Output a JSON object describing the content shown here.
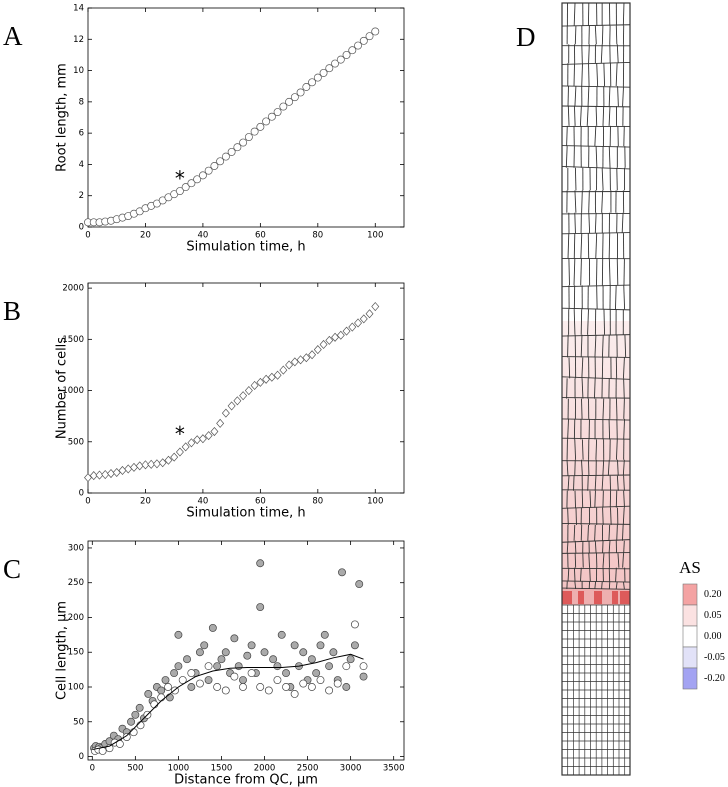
{
  "chart_data": [
    {
      "type": "scatter",
      "panel_label": "A",
      "xlabel": "Simulation time, h",
      "ylabel": "Root length, mm",
      "xlim": [
        0,
        110
      ],
      "ylim": [
        0,
        14
      ],
      "xticks": [
        0,
        20,
        40,
        60,
        80,
        100
      ],
      "yticks": [
        0,
        2,
        4,
        6,
        8,
        10,
        12,
        14
      ],
      "annotations": [
        {
          "text": "*",
          "x": 32,
          "y": 3.0
        }
      ],
      "x": [
        0,
        2,
        4,
        6,
        8,
        10,
        12,
        14,
        16,
        18,
        20,
        22,
        24,
        26,
        28,
        30,
        32,
        34,
        36,
        38,
        40,
        42,
        44,
        46,
        48,
        50,
        52,
        54,
        56,
        58,
        60,
        62,
        64,
        66,
        68,
        70,
        72,
        74,
        76,
        78,
        80,
        82,
        84,
        86,
        88,
        90,
        92,
        94,
        96,
        98,
        100
      ],
      "series": [
        {
          "marker": "o",
          "color": "#ffffff",
          "edgecolor": "#555555",
          "values": [
            0.3,
            0.3,
            0.3,
            0.35,
            0.4,
            0.5,
            0.6,
            0.7,
            0.85,
            1.0,
            1.2,
            1.35,
            1.5,
            1.7,
            1.9,
            2.1,
            2.3,
            2.55,
            2.8,
            3.05,
            3.3,
            3.6,
            3.9,
            4.2,
            4.5,
            4.8,
            5.1,
            5.4,
            5.75,
            6.1,
            6.4,
            6.75,
            7.05,
            7.35,
            7.7,
            8.0,
            8.3,
            8.6,
            8.95,
            9.25,
            9.55,
            9.85,
            10.15,
            10.45,
            10.7,
            11.0,
            11.3,
            11.6,
            11.9,
            12.2,
            12.5
          ]
        }
      ]
    },
    {
      "type": "scatter",
      "panel_label": "B",
      "xlabel": "Simulation time, h",
      "ylabel": "Number of cells",
      "xlim": [
        0,
        110
      ],
      "ylim": [
        0,
        2050
      ],
      "xticks": [
        0,
        20,
        40,
        60,
        80,
        100
      ],
      "yticks": [
        0,
        500,
        1000,
        1500,
        2000
      ],
      "annotations": [
        {
          "text": "*",
          "x": 32,
          "y": 560
        }
      ],
      "x": [
        0,
        2,
        4,
        6,
        8,
        10,
        12,
        14,
        16,
        18,
        20,
        22,
        24,
        26,
        28,
        30,
        32,
        34,
        36,
        38,
        40,
        42,
        44,
        46,
        48,
        50,
        52,
        54,
        56,
        58,
        60,
        62,
        64,
        66,
        68,
        70,
        72,
        74,
        76,
        78,
        80,
        82,
        84,
        86,
        88,
        90,
        92,
        94,
        96,
        98,
        100
      ],
      "series": [
        {
          "marker": "d",
          "color": "#ffffff",
          "edgecolor": "#555555",
          "values": [
            150,
            170,
            175,
            180,
            190,
            200,
            220,
            235,
            250,
            265,
            275,
            280,
            285,
            295,
            320,
            350,
            400,
            450,
            490,
            520,
            530,
            560,
            600,
            680,
            780,
            850,
            900,
            950,
            1000,
            1050,
            1080,
            1110,
            1130,
            1150,
            1200,
            1250,
            1280,
            1300,
            1320,
            1350,
            1400,
            1450,
            1490,
            1520,
            1540,
            1580,
            1620,
            1660,
            1700,
            1750,
            1820
          ]
        }
      ]
    },
    {
      "type": "scatter",
      "panel_label": "C",
      "xlabel": "Distance from QC, μm",
      "ylabel": "Cell length, μm",
      "xlim": [
        -50,
        3620
      ],
      "ylim": [
        -5,
        310
      ],
      "xticks": [
        0,
        500,
        1000,
        1500,
        2000,
        2500,
        3000,
        3500
      ],
      "yticks": [
        0,
        50,
        100,
        150,
        200,
        250,
        300
      ],
      "series": [
        {
          "marker": "o",
          "color": "#aaaaaa",
          "edgecolor": "#444444",
          "x": [
            20,
            40,
            60,
            80,
            100,
            150,
            200,
            250,
            300,
            350,
            400,
            450,
            500,
            550,
            600,
            650,
            700,
            750,
            800,
            850,
            900,
            950,
            1000,
            1000,
            1100,
            1150,
            1200,
            1250,
            1300,
            1350,
            1400,
            1450,
            1500,
            1550,
            1600,
            1650,
            1700,
            1750,
            1800,
            1850,
            1900,
            1950,
            1950,
            2000,
            2100,
            2150,
            2200,
            2250,
            2300,
            2350,
            2400,
            2450,
            2500,
            2550,
            2600,
            2650,
            2700,
            2750,
            2800,
            2850,
            2900,
            2950,
            3000,
            3050,
            3100,
            3150
          ],
          "values": [
            12,
            15,
            10,
            14,
            12,
            18,
            22,
            30,
            25,
            40,
            35,
            50,
            60,
            70,
            55,
            90,
            80,
            100,
            95,
            110,
            85,
            120,
            130,
            175,
            140,
            100,
            120,
            150,
            160,
            110,
            185,
            130,
            140,
            150,
            120,
            170,
            130,
            110,
            145,
            160,
            120,
            215,
            278,
            150,
            140,
            130,
            175,
            120,
            100,
            160,
            130,
            150,
            110,
            140,
            120,
            160,
            175,
            130,
            150,
            110,
            265,
            100,
            140,
            160,
            248,
            115
          ]
        },
        {
          "marker": "o",
          "color": "#ffffff",
          "edgecolor": "#444444",
          "x": [
            30,
            70,
            120,
            200,
            260,
            320,
            400,
            480,
            560,
            640,
            720,
            800,
            880,
            960,
            1050,
            1150,
            1250,
            1350,
            1450,
            1550,
            1650,
            1750,
            1850,
            1950,
            2050,
            2150,
            2250,
            2350,
            2450,
            2550,
            2650,
            2750,
            2850,
            2950,
            3050,
            3150
          ],
          "values": [
            8,
            10,
            8,
            12,
            20,
            18,
            28,
            35,
            45,
            60,
            75,
            85,
            100,
            95,
            110,
            120,
            105,
            130,
            100,
            95,
            115,
            100,
            120,
            100,
            95,
            110,
            100,
            90,
            105,
            100,
            110,
            95,
            105,
            130,
            190,
            130
          ]
        },
        {
          "type": "line",
          "color": "#000000",
          "x": [
            0,
            200,
            400,
            600,
            800,
            1000,
            1200,
            1400,
            1600,
            1800,
            2000,
            2200,
            2400,
            2600,
            2800,
            3000,
            3150
          ],
          "values": [
            10,
            15,
            30,
            55,
            80,
            100,
            115,
            123,
            127,
            128,
            128,
            128,
            130,
            135,
            142,
            147,
            140
          ]
        }
      ]
    }
  ],
  "panel_d": {
    "label": "D",
    "colorbar": {
      "title": "AS",
      "colors": [
        "#f4a3a3",
        "#fbe2e2",
        "#ffffff",
        "#e2e2f8",
        "#a3a3f2"
      ],
      "ticks": [
        {
          "value": 0.2,
          "label": "0.20"
        },
        {
          "value": 0.05,
          "label": "0.05"
        },
        {
          "value": 0,
          "label": "0.00"
        },
        {
          "value": -0.05,
          "label": "-0.05"
        },
        {
          "value": -0.2,
          "label": "-0.20"
        }
      ]
    }
  }
}
